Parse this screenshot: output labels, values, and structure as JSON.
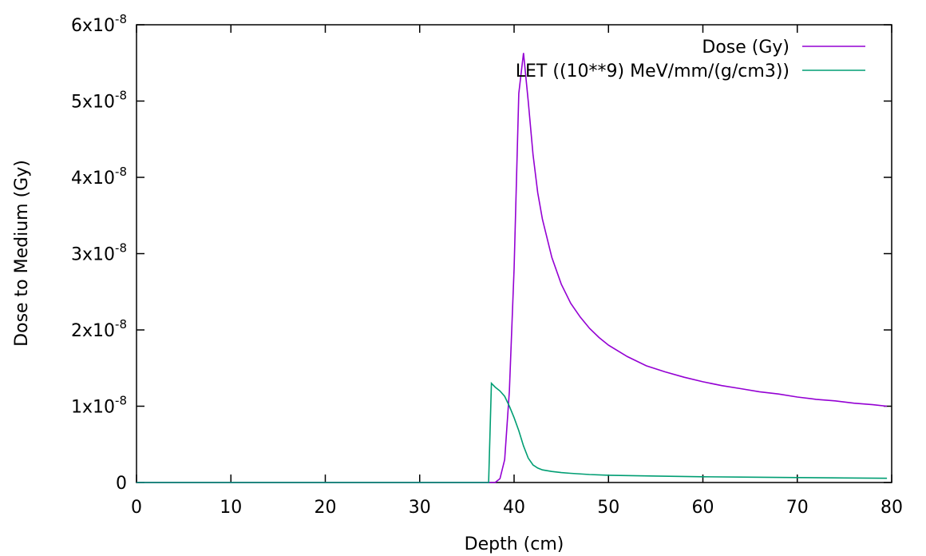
{
  "chart_data": {
    "type": "line",
    "title": "",
    "xlabel": "Depth (cm)",
    "ylabel": "Dose to Medium (Gy)",
    "xlim": [
      0,
      80
    ],
    "ylim": [
      0,
      6e-08
    ],
    "x_ticks": [
      0,
      10,
      20,
      30,
      40,
      50,
      60,
      70,
      80
    ],
    "x_tick_labels": [
      "0",
      "10",
      "20",
      "30",
      "40",
      "50",
      "60",
      "70",
      "80"
    ],
    "y_ticks": [
      0,
      1e-08,
      2e-08,
      3e-08,
      4e-08,
      5e-08,
      6e-08
    ],
    "y_tick_labels": [
      {
        "base": "0",
        "exp": ""
      },
      {
        "base": "1x10",
        "exp": "-8"
      },
      {
        "base": "2x10",
        "exp": "-8"
      },
      {
        "base": "3x10",
        "exp": "-8"
      },
      {
        "base": "4x10",
        "exp": "-8"
      },
      {
        "base": "5x10",
        "exp": "-8"
      },
      {
        "base": "6x10",
        "exp": "-8"
      }
    ],
    "grid": false,
    "legend_position": "top-right",
    "series": [
      {
        "name": "Dose (Gy)",
        "color": "#9400d3",
        "points": [
          [
            0,
            0
          ],
          [
            37.5,
            0
          ],
          [
            38.0,
            1e-11
          ],
          [
            38.5,
            5e-10
          ],
          [
            39.0,
            3e-09
          ],
          [
            39.5,
            1.2e-08
          ],
          [
            40.0,
            2.8e-08
          ],
          [
            40.5,
            5.1e-08
          ],
          [
            41.0,
            5.63e-08
          ],
          [
            41.5,
            5e-08
          ],
          [
            42.0,
            4.3e-08
          ],
          [
            42.5,
            3.8e-08
          ],
          [
            43.0,
            3.45e-08
          ],
          [
            44.0,
            2.95e-08
          ],
          [
            45.0,
            2.6e-08
          ],
          [
            46.0,
            2.35e-08
          ],
          [
            47.0,
            2.17e-08
          ],
          [
            48.0,
            2.02e-08
          ],
          [
            49.0,
            1.9e-08
          ],
          [
            50.0,
            1.8e-08
          ],
          [
            52.0,
            1.65e-08
          ],
          [
            54.0,
            1.53e-08
          ],
          [
            56.0,
            1.45e-08
          ],
          [
            58.0,
            1.38e-08
          ],
          [
            60.0,
            1.32e-08
          ],
          [
            62.0,
            1.27e-08
          ],
          [
            64.0,
            1.23e-08
          ],
          [
            66.0,
            1.19e-08
          ],
          [
            68.0,
            1.16e-08
          ],
          [
            70.0,
            1.12e-08
          ],
          [
            72.0,
            1.09e-08
          ],
          [
            74.0,
            1.07e-08
          ],
          [
            76.0,
            1.04e-08
          ],
          [
            78.0,
            1.02e-08
          ],
          [
            79.5,
            1e-08
          ]
        ]
      },
      {
        "name": "LET ((10**9) MeV/mm/(g/cm3))",
        "color": "#009e73",
        "points": [
          [
            0,
            0
          ],
          [
            37.3,
            0
          ],
          [
            37.6,
            1.3e-08
          ],
          [
            38.0,
            1.25e-08
          ],
          [
            38.5,
            1.2e-08
          ],
          [
            39.0,
            1.13e-08
          ],
          [
            39.5,
            1e-08
          ],
          [
            40.0,
            8.5e-09
          ],
          [
            40.5,
            6.8e-09
          ],
          [
            41.0,
            4.8e-09
          ],
          [
            41.5,
            3.2e-09
          ],
          [
            42.0,
            2.3e-09
          ],
          [
            42.5,
            1.9e-09
          ],
          [
            43.0,
            1.65e-09
          ],
          [
            44.0,
            1.45e-09
          ],
          [
            45.0,
            1.3e-09
          ],
          [
            46.0,
            1.2e-09
          ],
          [
            48.0,
            1.05e-09
          ],
          [
            50.0,
            9.5e-10
          ],
          [
            55.0,
            8.5e-10
          ],
          [
            60.0,
            7.5e-10
          ],
          [
            65.0,
            7e-10
          ],
          [
            70.0,
            6.5e-10
          ],
          [
            75.0,
            6e-10
          ],
          [
            79.5,
            5.5e-10
          ]
        ]
      }
    ]
  }
}
